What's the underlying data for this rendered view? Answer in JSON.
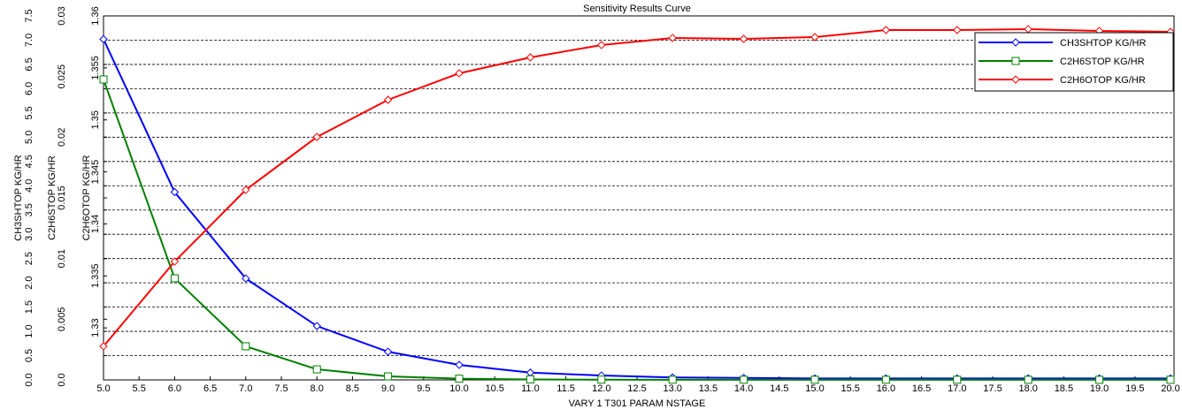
{
  "chart_data": {
    "type": "line",
    "title": "Sensitivity Results Curve",
    "x_label": "VARY   1 T301 PARAM NSTAGE",
    "y_label": "CH3SHTOP KG/HR",
    "y2_label": "C2H6STOP KG/HR",
    "y3_label": "C2H6OTOP KG/HR",
    "x": [
      5,
      6,
      7,
      8,
      9,
      10,
      11,
      12,
      13,
      14,
      15,
      16,
      17,
      18,
      19,
      20
    ],
    "xlim": [
      5,
      20
    ],
    "xticks": [
      {
        "value": 5,
        "label": "5.0"
      },
      5.5,
      {
        "value": 6,
        "label": "6.0"
      },
      6.5,
      {
        "value": 7,
        "label": "7.0"
      },
      7.5,
      {
        "value": 8,
        "label": "8.0"
      },
      8.5,
      {
        "value": 9,
        "label": "9.0"
      },
      9.5,
      {
        "value": 10,
        "label": "10.0"
      },
      10.5,
      {
        "value": 11,
        "label": "11.0"
      },
      11.5,
      {
        "value": 12,
        "label": "12.0"
      },
      12.5,
      {
        "value": 13,
        "label": "13.0"
      },
      13.5,
      {
        "value": 14,
        "label": "14.0"
      },
      14.5,
      {
        "value": 15,
        "label": "15.0"
      },
      15.5,
      {
        "value": 16,
        "label": "16.0"
      },
      16.5,
      {
        "value": 17,
        "label": "17.0"
      },
      17.5,
      {
        "value": 18,
        "label": "18.0"
      },
      18.5,
      {
        "value": 19,
        "label": "19.0"
      },
      19.5,
      {
        "value": 20,
        "label": "20.0"
      }
    ],
    "ylim": [
      0,
      7.5
    ],
    "yticks": [
      {
        "value": 0,
        "label": "0.0"
      },
      0.5,
      {
        "value": 1,
        "label": "1.0"
      },
      1.5,
      {
        "value": 2,
        "label": "2.0"
      },
      2.5,
      {
        "value": 3,
        "label": "3.0"
      },
      3.5,
      {
        "value": 4,
        "label": "4.0"
      },
      4.5,
      {
        "value": 5,
        "label": "5.0"
      },
      5.5,
      {
        "value": 6,
        "label": "6.0"
      },
      6.5,
      {
        "value": 7,
        "label": "7.0"
      },
      7.5
    ],
    "y2lim": [
      0,
      0.03
    ],
    "y2ticks": [
      {
        "value": 0,
        "label": "0.0"
      },
      0.005,
      0.01,
      0.015,
      0.02,
      0.025,
      0.03
    ],
    "y3lim": [
      1.325,
      1.36
    ],
    "y3ticks": [
      1.33,
      1.335,
      1.34,
      1.345,
      1.35,
      1.355,
      1.36
    ],
    "grid": true,
    "legend": "top-right",
    "series": [
      {
        "name": "CH3SHTOP KG/HR",
        "color": "#0000ff",
        "marker": "diamond",
        "axis": "y",
        "values": [
          7.02,
          3.87,
          2.09,
          1.11,
          0.58,
          0.31,
          0.15,
          0.09,
          0.05,
          0.04,
          0.03,
          0.03,
          0.03,
          0.03,
          0.03,
          0.03
        ]
      },
      {
        "name": "C2H6STOP KG/HR",
        "color": "#008000",
        "marker": "square",
        "axis": "y2",
        "values": [
          0.02476,
          0.00837,
          0.00277,
          0.00087,
          0.00029,
          0.0001,
          4e-05,
          2e-05,
          1e-05,
          1e-05,
          1e-05,
          1e-05,
          1e-05,
          1e-05,
          1e-05,
          1e-05
        ]
      },
      {
        "name": "C2H6OTOP KG/HR",
        "color": "#ff0000",
        "marker": "diamond",
        "axis": "y3",
        "values": [
          1.32823,
          1.33638,
          1.34327,
          1.34836,
          1.35193,
          1.35448,
          1.35601,
          1.3572,
          1.35788,
          1.35779,
          1.35796,
          1.35864,
          1.35864,
          1.35873,
          1.35856,
          1.35847
        ]
      }
    ]
  }
}
